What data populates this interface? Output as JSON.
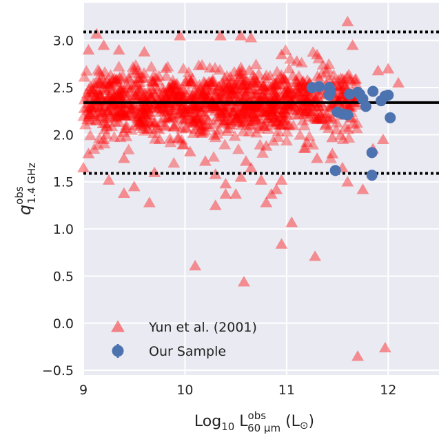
{
  "chart_data": {
    "type": "scatter",
    "title": "",
    "xlabel": "Log10 L^obs_60µm (L⊙)",
    "xlabel_parts": {
      "base": "Log",
      "sub": "10",
      "L": " L",
      "sup": "obs",
      "sub2": "60 µm",
      "unit": " (L",
      "sun": "⊙",
      "close": ")"
    },
    "ylabel": "q^obs_1.4GHz",
    "ylabel_parts": {
      "q": "q",
      "sup": "obs",
      "sub": "1.4 GHz"
    },
    "xlim": [
      9,
      12.5
    ],
    "ylim": [
      -0.55,
      3.4
    ],
    "xticks": [
      9,
      10,
      11,
      12
    ],
    "xtick_labels": [
      "9",
      "10",
      "11",
      "12"
    ],
    "yticks": [
      -0.5,
      0.0,
      0.5,
      1.0,
      1.5,
      2.0,
      2.5,
      3.0
    ],
    "ytick_labels": [
      "−0.5",
      "0.0",
      "0.5",
      "1.0",
      "1.5",
      "2.0",
      "2.5",
      "3.0"
    ],
    "grid": true,
    "legend_position": "bottom-left",
    "reference_lines": [
      {
        "y": 2.34,
        "style": "solid",
        "color": "#000000"
      },
      {
        "y": 3.09,
        "style": "dotted",
        "color": "#000000"
      },
      {
        "y": 1.59,
        "style": "dotted",
        "color": "#000000"
      }
    ],
    "series": [
      {
        "name": "Yun et al. (2001)",
        "marker": "triangle",
        "color": "#ff0000",
        "opacity": 0.35,
        "cloud": {
          "x_range": [
            9.0,
            11.7
          ],
          "y_mean": 2.34,
          "y_sd": 0.17,
          "count": 1300
        },
        "outliers": [
          {
            "x": 9.13,
            "y": 3.07
          },
          {
            "x": 9.2,
            "y": 2.95
          },
          {
            "x": 9.05,
            "y": 2.9
          },
          {
            "x": 9.35,
            "y": 2.9
          },
          {
            "x": 9.6,
            "y": 2.88
          },
          {
            "x": 9.95,
            "y": 3.05
          },
          {
            "x": 10.35,
            "y": 3.05
          },
          {
            "x": 10.55,
            "y": 3.05
          },
          {
            "x": 10.65,
            "y": 3.03
          },
          {
            "x": 10.95,
            "y": 2.85
          },
          {
            "x": 11.1,
            "y": 2.78
          },
          {
            "x": 11.6,
            "y": 3.2
          },
          {
            "x": 11.65,
            "y": 2.95
          },
          {
            "x": 12.1,
            "y": 2.55
          },
          {
            "x": 11.9,
            "y": 2.68
          },
          {
            "x": 12.0,
            "y": 2.7
          },
          {
            "x": 11.3,
            "y": 2.85
          },
          {
            "x": 9.05,
            "y": 1.8
          },
          {
            "x": 9.2,
            "y": 1.95
          },
          {
            "x": 9.4,
            "y": 1.75
          },
          {
            "x": 9.0,
            "y": 1.65
          },
          {
            "x": 9.25,
            "y": 1.52
          },
          {
            "x": 9.7,
            "y": 1.6
          },
          {
            "x": 9.5,
            "y": 1.45
          },
          {
            "x": 9.75,
            "y": 1.95
          },
          {
            "x": 10.05,
            "y": 1.82
          },
          {
            "x": 10.2,
            "y": 1.72
          },
          {
            "x": 10.4,
            "y": 1.48
          },
          {
            "x": 10.5,
            "y": 1.37
          },
          {
            "x": 10.3,
            "y": 1.58
          },
          {
            "x": 10.65,
            "y": 1.65
          },
          {
            "x": 10.75,
            "y": 1.52
          },
          {
            "x": 10.8,
            "y": 1.88
          },
          {
            "x": 10.85,
            "y": 1.37
          },
          {
            "x": 10.95,
            "y": 1.52
          },
          {
            "x": 10.6,
            "y": 1.72
          },
          {
            "x": 11.2,
            "y": 1.92
          },
          {
            "x": 11.3,
            "y": 1.75
          },
          {
            "x": 11.45,
            "y": 1.8
          },
          {
            "x": 11.55,
            "y": 1.65
          },
          {
            "x": 11.6,
            "y": 1.5
          },
          {
            "x": 11.75,
            "y": 1.42
          },
          {
            "x": 11.85,
            "y": 1.85
          },
          {
            "x": 11.95,
            "y": 1.95
          },
          {
            "x": 11.45,
            "y": 1.97
          },
          {
            "x": 9.4,
            "y": 1.38
          },
          {
            "x": 9.65,
            "y": 1.28
          },
          {
            "x": 10.3,
            "y": 1.25
          },
          {
            "x": 10.4,
            "y": 1.37
          },
          {
            "x": 10.55,
            "y": 1.55
          },
          {
            "x": 10.8,
            "y": 1.28
          },
          {
            "x": 10.9,
            "y": 1.42
          },
          {
            "x": 11.05,
            "y": 1.07
          },
          {
            "x": 10.95,
            "y": 0.84
          },
          {
            "x": 11.28,
            "y": 0.71
          },
          {
            "x": 10.1,
            "y": 0.61
          },
          {
            "x": 10.58,
            "y": 0.44
          },
          {
            "x": 11.7,
            "y": -0.35
          },
          {
            "x": 11.97,
            "y": -0.26
          }
        ]
      },
      {
        "name": "Our Sample",
        "marker": "circle",
        "color": "#4c72b0",
        "points": [
          {
            "x": 11.25,
            "y": 2.5
          },
          {
            "x": 11.32,
            "y": 2.51
          },
          {
            "x": 11.42,
            "y": 2.5
          },
          {
            "x": 11.43,
            "y": 2.46
          },
          {
            "x": 11.42,
            "y": 2.42
          },
          {
            "x": 11.5,
            "y": 2.24
          },
          {
            "x": 11.55,
            "y": 2.22
          },
          {
            "x": 11.6,
            "y": 2.21
          },
          {
            "x": 11.62,
            "y": 2.43
          },
          {
            "x": 11.7,
            "y": 2.45
          },
          {
            "x": 11.72,
            "y": 2.43
          },
          {
            "x": 11.75,
            "y": 2.38
          },
          {
            "x": 11.78,
            "y": 2.3
          },
          {
            "x": 11.85,
            "y": 2.46
          },
          {
            "x": 11.93,
            "y": 2.36
          },
          {
            "x": 11.97,
            "y": 2.41
          },
          {
            "x": 12.0,
            "y": 2.42
          },
          {
            "x": 12.02,
            "y": 2.18
          },
          {
            "x": 11.48,
            "y": 1.62
          },
          {
            "x": 11.84,
            "y": 1.81
          },
          {
            "x": 11.84,
            "y": 1.57
          }
        ]
      }
    ]
  }
}
